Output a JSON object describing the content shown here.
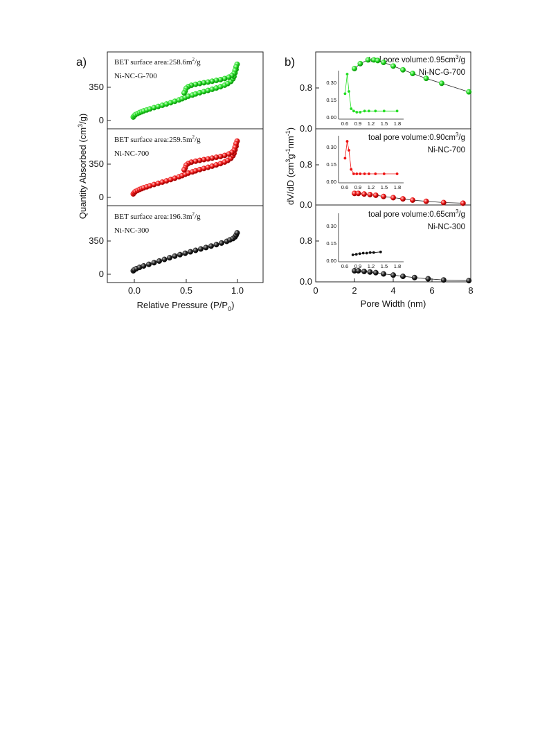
{
  "panel_a": {
    "label": "a)",
    "xlabel": "Relative Pressure (P/P",
    "xlabel_sub": "0",
    "xlabel_close": ")",
    "ylabel_main": "Quantity Absorbed (cm",
    "ylabel_sup": "3",
    "ylabel_close": "/g)",
    "xlim": [
      -0.25,
      1.25
    ],
    "xticks": [
      "0.0",
      "0.5",
      "1.0"
    ],
    "yticks": [
      "0",
      "350"
    ],
    "subplots": [
      {
        "annotation": "BET surface area:258.6m",
        "annotation_sup": "2",
        "annotation_tail": "/g",
        "sample": "Ni-NC-G-700",
        "color": "#22dd22"
      },
      {
        "annotation": "BET surface area:259.5m",
        "annotation_sup": "2",
        "annotation_tail": "/g",
        "sample": "Ni-NC-700",
        "color": "#ee1111"
      },
      {
        "annotation": "BET surface area:196.3m",
        "annotation_sup": "2",
        "annotation_tail": "/g",
        "sample": "Ni-NC-300",
        "color": "#111111"
      }
    ]
  },
  "panel_b": {
    "label": "b)",
    "xlabel": "Pore Width (nm)",
    "ylabel_main": "dV/dD (cm",
    "ylabel_sup1": "3",
    "ylabel_mid": "g",
    "ylabel_sup2": "-1",
    "ylabel_mid2": "nm",
    "ylabel_sup3": "-1",
    "ylabel_close": ")",
    "xlim": [
      0,
      8
    ],
    "xticks": [
      "0",
      "2",
      "4",
      "6",
      "8"
    ],
    "yticks": [
      "0.0",
      "0.8"
    ],
    "inset_xticks": [
      "0.6",
      "0.9",
      "1.2",
      "1.5",
      "1.8"
    ],
    "inset_yticks": [
      "0.00",
      "0.15",
      "0.30"
    ],
    "subplots": [
      {
        "annotation": "toal pore volume:0.95cm",
        "annotation_sup": "3",
        "annotation_tail": "/g",
        "sample": "Ni-NC-G-700",
        "color": "#22dd22"
      },
      {
        "annotation": "toal pore volume:0.90cm",
        "annotation_sup": "3",
        "annotation_tail": "/g",
        "sample": "Ni-NC-700",
        "color": "#ee1111"
      },
      {
        "annotation": "toal pore volume:0.65cm",
        "annotation_sup": "3",
        "annotation_tail": "/g",
        "sample": "Ni-NC-300",
        "color": "#111111"
      }
    ]
  },
  "chart_data": [
    {
      "type": "scatter",
      "panel": "a",
      "xlabel": "Relative Pressure (P/P0)",
      "ylabel": "Quantity Absorbed (cm3/g)",
      "xlim": [
        -0.25,
        1.25
      ],
      "ylim": [
        -100,
        650
      ],
      "series": [
        {
          "name": "Ni-NC-G-700",
          "x": [
            0.0,
            0.01,
            0.02,
            0.04,
            0.06,
            0.08,
            0.1,
            0.13,
            0.16,
            0.2,
            0.24,
            0.28,
            0.32,
            0.36,
            0.4,
            0.44,
            0.47,
            0.5,
            0.53,
            0.57,
            0.6,
            0.64,
            0.68,
            0.72,
            0.76,
            0.8,
            0.84,
            0.88,
            0.91,
            0.94,
            0.96,
            0.97,
            0.98,
            0.99,
            1.0,
            0.99,
            0.98,
            0.97,
            0.95,
            0.92,
            0.88,
            0.84,
            0.8,
            0.76,
            0.72,
            0.68,
            0.64,
            0.6,
            0.56,
            0.53,
            0.51,
            0.5,
            0.49
          ],
          "y": [
            15,
            28,
            38,
            48,
            58,
            66,
            74,
            84,
            94,
            106,
            118,
            130,
            142,
            155,
            168,
            182,
            193,
            206,
            218,
            230,
            240,
            252,
            263,
            274,
            286,
            298,
            311,
            326,
            341,
            362,
            388,
            410,
            445,
            480,
            530,
            505,
            470,
            440,
            420,
            404,
            390,
            380,
            372,
            364,
            356,
            349,
            342,
            334,
            324,
            312,
            296,
            268,
            250
          ]
        },
        {
          "name": "Ni-NC-700",
          "x": [
            0.0,
            0.01,
            0.02,
            0.04,
            0.06,
            0.08,
            0.1,
            0.13,
            0.16,
            0.2,
            0.24,
            0.28,
            0.32,
            0.36,
            0.4,
            0.44,
            0.47,
            0.5,
            0.53,
            0.57,
            0.6,
            0.64,
            0.68,
            0.72,
            0.76,
            0.8,
            0.84,
            0.88,
            0.91,
            0.94,
            0.96,
            0.97,
            0.98,
            0.99,
            1.0,
            0.99,
            0.98,
            0.97,
            0.95,
            0.92,
            0.88,
            0.84,
            0.8,
            0.76,
            0.72,
            0.68,
            0.64,
            0.6,
            0.56,
            0.53,
            0.51,
            0.5,
            0.49
          ],
          "y": [
            15,
            28,
            38,
            48,
            58,
            66,
            74,
            84,
            94,
            106,
            118,
            130,
            142,
            155,
            168,
            182,
            193,
            206,
            218,
            230,
            240,
            252,
            263,
            274,
            286,
            298,
            311,
            326,
            341,
            362,
            388,
            410,
            445,
            480,
            530,
            505,
            470,
            440,
            420,
            404,
            390,
            380,
            372,
            364,
            356,
            349,
            342,
            334,
            324,
            312,
            296,
            268,
            250
          ]
        },
        {
          "name": "Ni-NC-300",
          "x": [
            0.0,
            0.01,
            0.03,
            0.06,
            0.1,
            0.15,
            0.2,
            0.25,
            0.3,
            0.35,
            0.4,
            0.45,
            0.5,
            0.55,
            0.6,
            0.65,
            0.7,
            0.75,
            0.8,
            0.85,
            0.9,
            0.93,
            0.96,
            0.98,
            0.99,
            1.0
          ],
          "y": [
            15,
            25,
            36,
            48,
            62,
            78,
            94,
            110,
            126,
            142,
            158,
            172,
            186,
            200,
            214,
            228,
            242,
            256,
            270,
            286,
            302,
            316,
            330,
            345,
            362,
            385
          ]
        }
      ]
    },
    {
      "type": "line",
      "panel": "b",
      "xlabel": "Pore Width (nm)",
      "ylabel": "dV/dD (cm3g-1nm-1)",
      "xlim": [
        0,
        8
      ],
      "ylim": [
        0,
        1.25
      ],
      "series": [
        {
          "name": "Ni-NC-G-700",
          "x": [
            2.0,
            2.3,
            2.7,
            3.0,
            3.2,
            3.5,
            4.0,
            4.5,
            5.0,
            5.7,
            6.5,
            7.9
          ],
          "y": [
            0.98,
            1.06,
            1.12,
            1.12,
            1.11,
            1.08,
            1.02,
            0.96,
            0.9,
            0.82,
            0.74,
            0.6
          ]
        },
        {
          "name": "Ni-NC-700",
          "x": [
            2.0,
            2.2,
            2.5,
            2.8,
            3.1,
            3.5,
            4.0,
            4.5,
            5.0,
            5.7,
            6.6,
            7.6
          ],
          "y": [
            0.19,
            0.19,
            0.18,
            0.17,
            0.16,
            0.14,
            0.12,
            0.1,
            0.08,
            0.06,
            0.04,
            0.03
          ]
        },
        {
          "name": "Ni-NC-300",
          "x": [
            2.0,
            2.2,
            2.5,
            2.8,
            3.1,
            3.5,
            4.0,
            4.5,
            5.1,
            5.8,
            6.6,
            7.9
          ],
          "y": [
            0.18,
            0.18,
            0.17,
            0.16,
            0.15,
            0.13,
            0.11,
            0.09,
            0.07,
            0.05,
            0.03,
            0.02
          ]
        }
      ],
      "insets": [
        {
          "name": "Ni-NC-G-700",
          "xlim": [
            0.45,
            1.95
          ],
          "ylim": [
            -0.02,
            0.4
          ],
          "x": [
            0.6,
            0.65,
            0.69,
            0.74,
            0.8,
            0.87,
            0.95,
            1.05,
            1.15,
            1.3,
            1.5,
            1.8
          ],
          "y": [
            0.2,
            0.37,
            0.22,
            0.07,
            0.05,
            0.04,
            0.04,
            0.05,
            0.05,
            0.05,
            0.05,
            0.05
          ]
        },
        {
          "name": "Ni-NC-700",
          "xlim": [
            0.45,
            1.95
          ],
          "ylim": [
            -0.02,
            0.4
          ],
          "x": [
            0.6,
            0.65,
            0.69,
            0.74,
            0.8,
            0.87,
            0.95,
            1.05,
            1.15,
            1.3,
            1.5,
            1.8
          ],
          "y": [
            0.2,
            0.35,
            0.27,
            0.1,
            0.06,
            0.06,
            0.06,
            0.06,
            0.06,
            0.06,
            0.06,
            0.06
          ]
        },
        {
          "name": "Ni-NC-300",
          "xlim": [
            0.45,
            1.95
          ],
          "ylim": [
            -0.02,
            0.4
          ],
          "x": [
            0.78,
            0.86,
            0.94,
            1.02,
            1.1,
            1.18,
            1.26,
            1.42
          ],
          "y": [
            0.04,
            0.045,
            0.05,
            0.055,
            0.055,
            0.06,
            0.06,
            0.065
          ]
        }
      ]
    }
  ]
}
